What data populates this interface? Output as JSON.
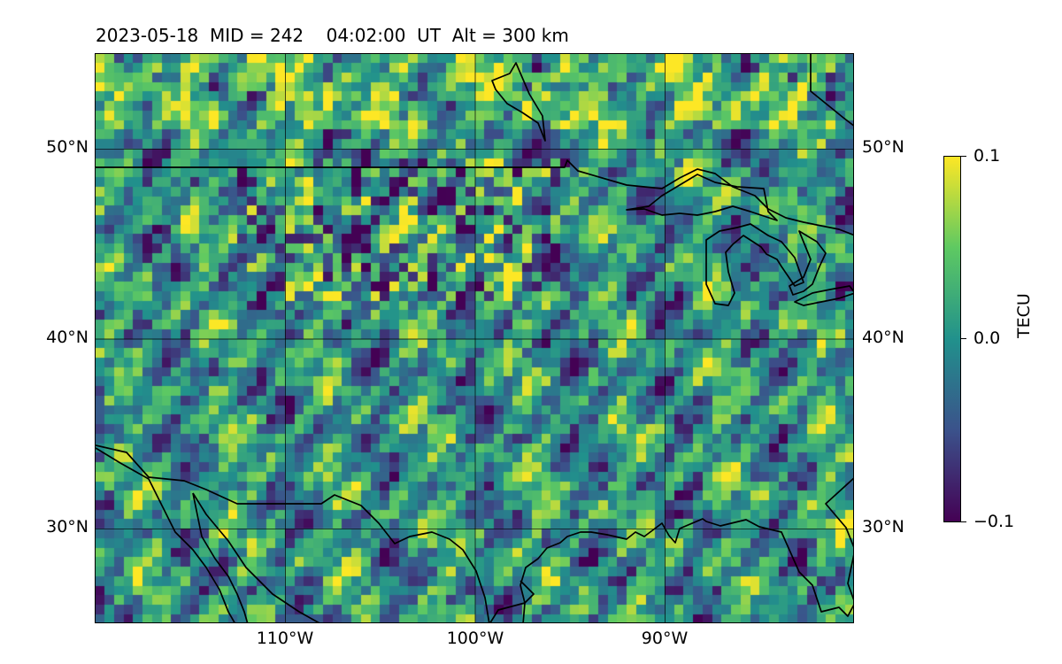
{
  "title": {
    "date": "2023-05-18",
    "mid": "MID = 242",
    "time": "04:02:00  UT",
    "alt": "Alt = 300 km"
  },
  "map": {
    "lon_range": [
      -120,
      -80
    ],
    "lat_range": [
      25,
      55
    ],
    "gridlines": true,
    "lat_labels": [
      {
        "lat": 50,
        "text": "50°N"
      },
      {
        "lat": 40,
        "text": "40°N"
      },
      {
        "lat": 30,
        "text": "30°N"
      }
    ],
    "lon_labels": [
      {
        "lon": -110,
        "text": "110°W"
      },
      {
        "lon": -100,
        "text": "100°W"
      },
      {
        "lon": -90,
        "text": "90°W"
      }
    ]
  },
  "colorbar": {
    "label": "TECU",
    "vmin": -0.1,
    "vmax": 0.1,
    "tick_labels": [
      "0.1",
      "0.0",
      "−0.1"
    ],
    "colormap": "viridis",
    "colors": [
      "#440154",
      "#3b528b",
      "#21918c",
      "#5ec962",
      "#fde725"
    ]
  }
}
